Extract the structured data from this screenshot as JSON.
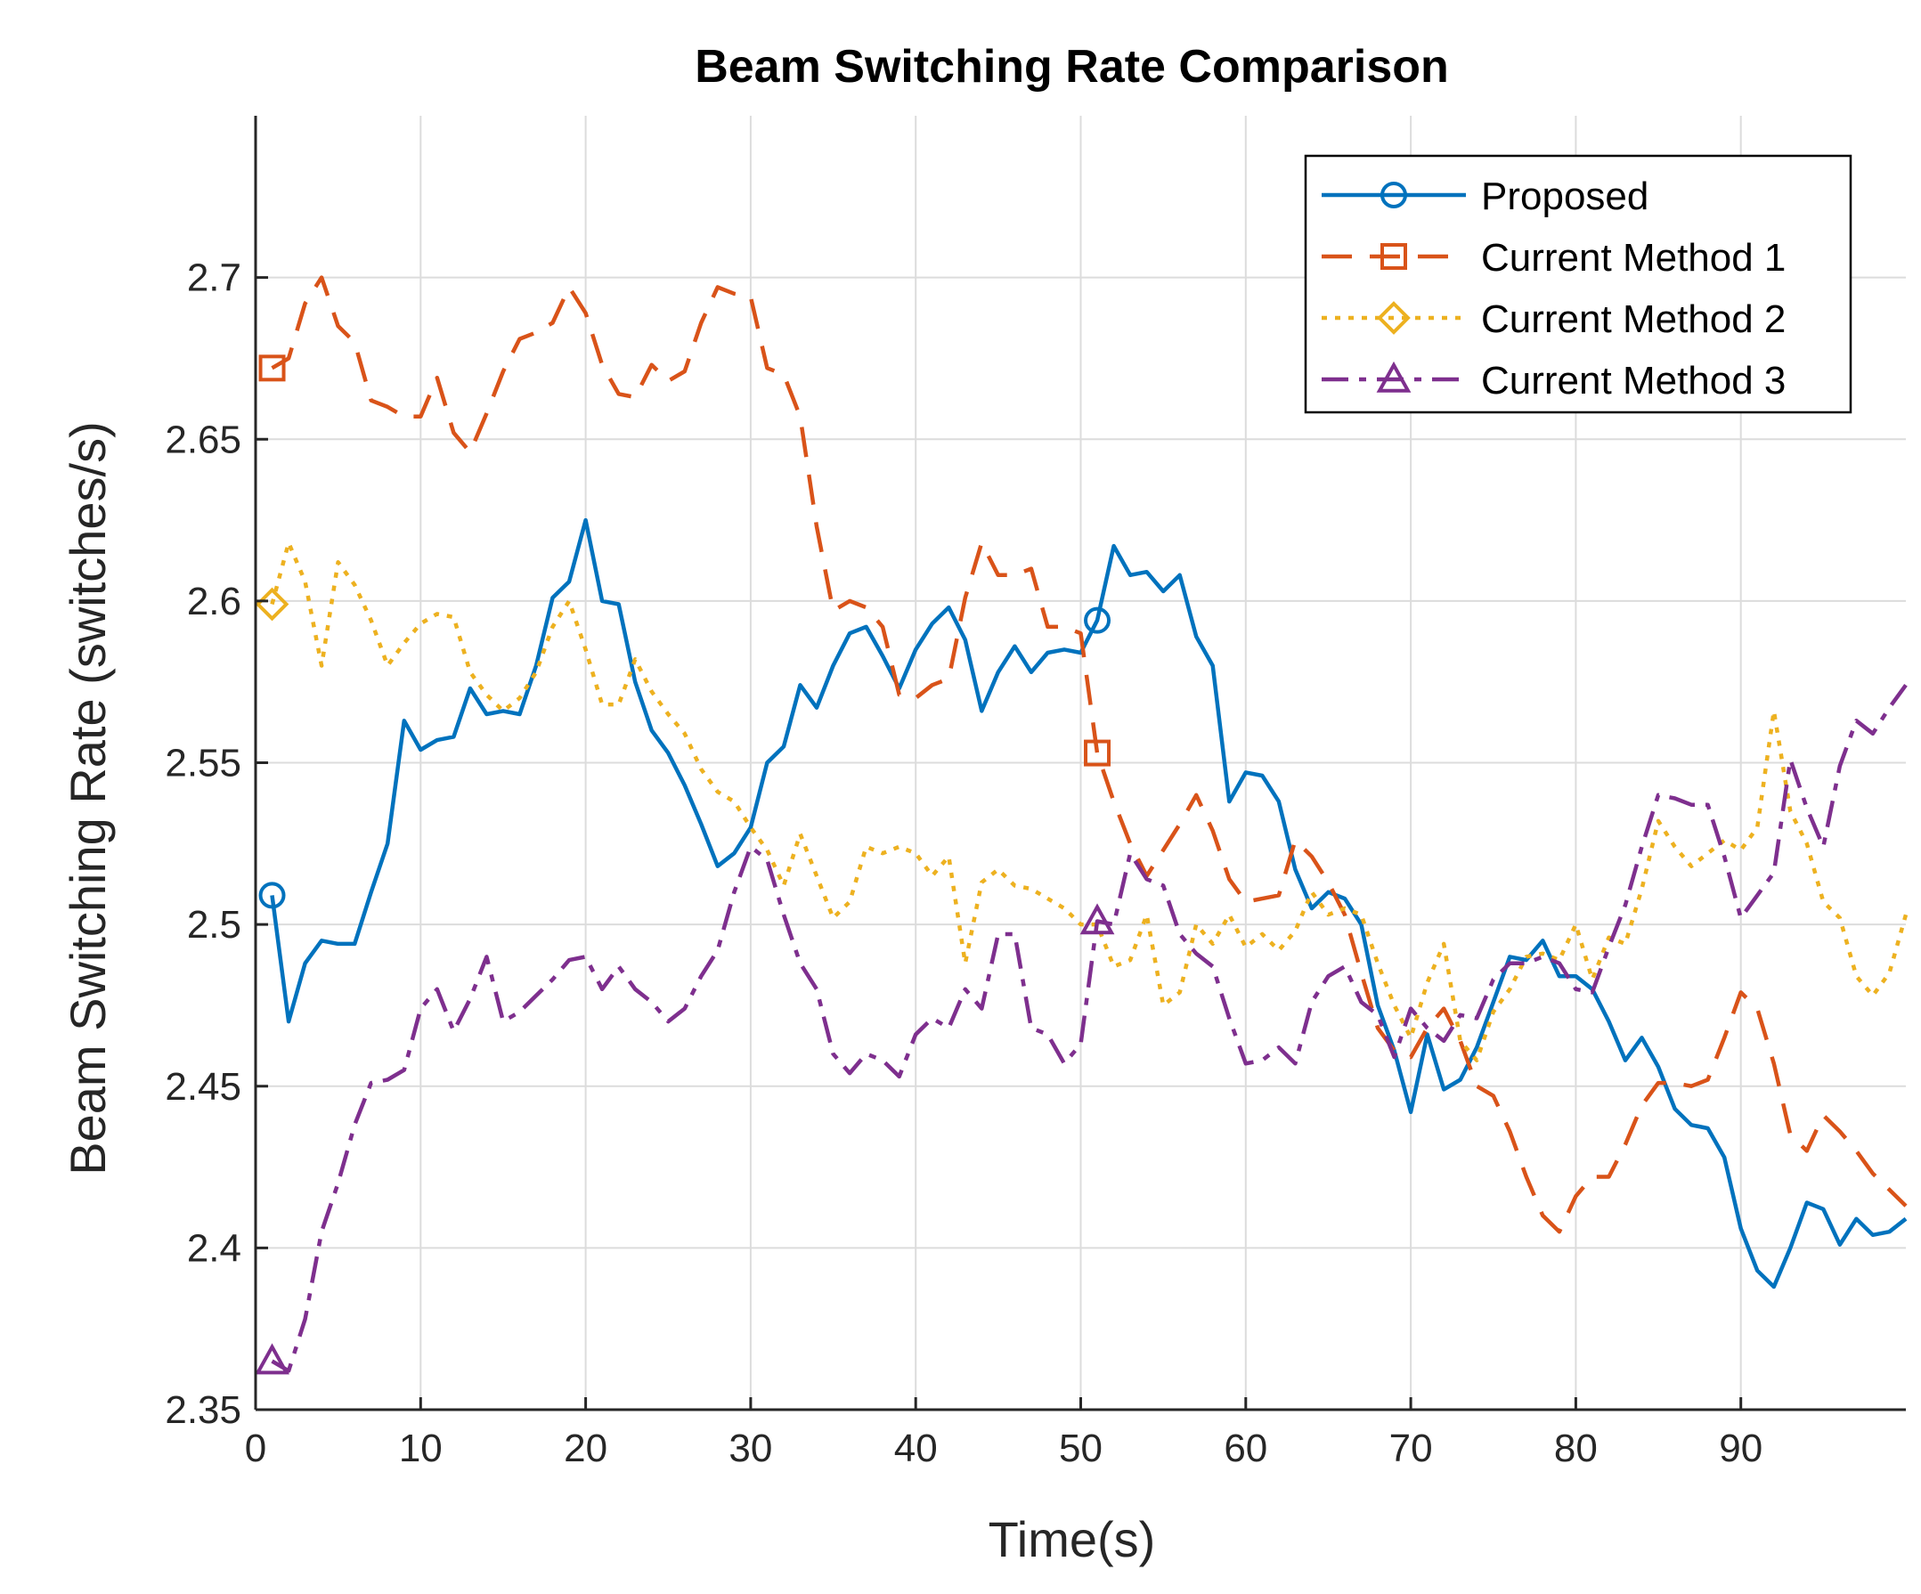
{
  "chart_data": {
    "type": "line",
    "title": "Beam Switching Rate Comparison",
    "xlabel": "Time(s)",
    "ylabel": "Beam Switching Rate (switches/s)",
    "xlim": [
      0,
      100
    ],
    "ylim": [
      2.35,
      2.75
    ],
    "xticks": [
      0,
      10,
      20,
      30,
      40,
      50,
      60,
      70,
      80,
      90
    ],
    "xtick_labels": [
      "0",
      "10",
      "20",
      "30",
      "40",
      "50",
      "60",
      "70",
      "80",
      "90"
    ],
    "yticks": [
      2.35,
      2.4,
      2.45,
      2.5,
      2.55,
      2.6,
      2.65,
      2.7
    ],
    "ytick_labels": [
      "2.35",
      "2.4",
      "2.45",
      "2.5",
      "2.55",
      "2.6",
      "2.65",
      "2.7"
    ],
    "grid": true,
    "legend_position": "top-right",
    "x": [
      1,
      2,
      3,
      4,
      5,
      6,
      7,
      8,
      9,
      10,
      11,
      12,
      13,
      14,
      15,
      16,
      17,
      18,
      19,
      20,
      21,
      22,
      23,
      24,
      25,
      26,
      27,
      28,
      29,
      30,
      31,
      32,
      33,
      34,
      35,
      36,
      37,
      38,
      39,
      40,
      41,
      42,
      43,
      44,
      45,
      46,
      47,
      48,
      49,
      50,
      51,
      52,
      53,
      54,
      55,
      56,
      57,
      58,
      59,
      60,
      61,
      62,
      63,
      64,
      65,
      66,
      67,
      68,
      69,
      70,
      71,
      72,
      73,
      74,
      75,
      76,
      77,
      78,
      79,
      80,
      81,
      82,
      83,
      84,
      85,
      86,
      87,
      88,
      89,
      90,
      91,
      92,
      93,
      94,
      95,
      96,
      97,
      98,
      99,
      100
    ],
    "series": [
      {
        "name": "Proposed",
        "color": "#0072BD",
        "dash": "solid",
        "marker": "circle",
        "marker_x": [
          1,
          51
        ],
        "values": [
          2.509,
          2.47,
          2.488,
          2.495,
          2.494,
          2.494,
          2.51,
          2.525,
          2.563,
          2.554,
          2.557,
          2.558,
          2.573,
          2.565,
          2.566,
          2.565,
          2.58,
          2.601,
          2.606,
          2.625,
          2.6,
          2.599,
          2.575,
          2.56,
          2.553,
          2.543,
          2.531,
          2.518,
          2.522,
          2.53,
          2.55,
          2.555,
          2.574,
          2.567,
          2.58,
          2.59,
          2.592,
          2.583,
          2.573,
          2.585,
          2.593,
          2.598,
          2.588,
          2.566,
          2.578,
          2.586,
          2.578,
          2.584,
          2.585,
          2.584,
          2.594,
          2.617,
          2.608,
          2.609,
          2.603,
          2.608,
          2.589,
          2.58,
          2.538,
          2.547,
          2.546,
          2.538,
          2.517,
          2.505,
          2.51,
          2.508,
          2.5,
          2.475,
          2.461,
          2.442,
          2.466,
          2.449,
          2.452,
          2.462,
          2.476,
          2.49,
          2.489,
          2.495,
          2.484,
          2.484,
          2.48,
          2.47,
          2.458,
          2.465,
          2.456,
          2.443,
          2.438,
          2.437,
          2.428,
          2.406,
          2.393,
          2.388,
          2.4,
          2.414,
          2.412,
          2.401,
          2.409,
          2.404,
          2.405,
          2.409
        ]
      },
      {
        "name": "Current Method 1",
        "color": "#D95319",
        "dash": "dashed",
        "marker": "square",
        "marker_x": [
          1,
          51
        ],
        "values": [
          2.672,
          2.675,
          2.692,
          2.7,
          2.685,
          2.68,
          2.662,
          2.66,
          2.657,
          2.657,
          2.669,
          2.652,
          2.646,
          2.658,
          2.671,
          2.681,
          2.683,
          2.686,
          2.697,
          2.689,
          2.673,
          2.664,
          2.663,
          2.673,
          2.668,
          2.671,
          2.686,
          2.697,
          2.695,
          2.694,
          2.672,
          2.67,
          2.657,
          2.623,
          2.597,
          2.6,
          2.598,
          2.592,
          2.571,
          2.57,
          2.574,
          2.576,
          2.601,
          2.618,
          2.608,
          2.608,
          2.61,
          2.592,
          2.592,
          2.59,
          2.553,
          2.538,
          2.525,
          2.515,
          2.523,
          2.531,
          2.54,
          2.529,
          2.514,
          2.507,
          2.508,
          2.509,
          2.526,
          2.521,
          2.513,
          2.503,
          2.485,
          2.468,
          2.461,
          2.459,
          2.468,
          2.474,
          2.464,
          2.45,
          2.447,
          2.436,
          2.422,
          2.41,
          2.405,
          2.416,
          2.422,
          2.422,
          2.432,
          2.444,
          2.451,
          2.451,
          2.45,
          2.452,
          2.465,
          2.479,
          2.474,
          2.457,
          2.435,
          2.43,
          2.441,
          2.436,
          2.43,
          2.423,
          2.418,
          2.413
        ]
      },
      {
        "name": "Current Method 2",
        "color": "#EDB120",
        "dash": "dotted",
        "marker": "diamond",
        "marker_x": [
          1
        ],
        "values": [
          2.599,
          2.618,
          2.606,
          2.58,
          2.612,
          2.605,
          2.594,
          2.58,
          2.587,
          2.593,
          2.596,
          2.595,
          2.578,
          2.571,
          2.566,
          2.57,
          2.578,
          2.592,
          2.6,
          2.585,
          2.568,
          2.568,
          2.582,
          2.572,
          2.565,
          2.559,
          2.548,
          2.541,
          2.538,
          2.53,
          2.523,
          2.512,
          2.528,
          2.515,
          2.502,
          2.507,
          2.524,
          2.522,
          2.524,
          2.522,
          2.515,
          2.521,
          2.488,
          2.513,
          2.517,
          2.512,
          2.511,
          2.508,
          2.505,
          2.5,
          2.5,
          2.487,
          2.489,
          2.503,
          2.475,
          2.479,
          2.5,
          2.494,
          2.503,
          2.493,
          2.497,
          2.492,
          2.498,
          2.51,
          2.503,
          2.505,
          2.503,
          2.488,
          2.475,
          2.465,
          2.482,
          2.494,
          2.464,
          2.458,
          2.473,
          2.48,
          2.49,
          2.491,
          2.489,
          2.5,
          2.483,
          2.496,
          2.494,
          2.511,
          2.532,
          2.524,
          2.518,
          2.522,
          2.526,
          2.523,
          2.53,
          2.566,
          2.535,
          2.525,
          2.507,
          2.502,
          2.484,
          2.478,
          2.485,
          2.503
        ]
      },
      {
        "name": "Current Method 3",
        "color": "#7E2F8E",
        "dash": "dashdot",
        "marker": "triangle",
        "marker_x": [
          1,
          51
        ],
        "values": [
          2.365,
          2.362,
          2.378,
          2.405,
          2.42,
          2.438,
          2.451,
          2.452,
          2.455,
          2.474,
          2.48,
          2.467,
          2.477,
          2.49,
          2.47,
          2.473,
          2.478,
          2.483,
          2.489,
          2.49,
          2.48,
          2.487,
          2.48,
          2.476,
          2.47,
          2.474,
          2.484,
          2.492,
          2.51,
          2.524,
          2.52,
          2.503,
          2.488,
          2.48,
          2.46,
          2.454,
          2.46,
          2.458,
          2.453,
          2.466,
          2.471,
          2.468,
          2.48,
          2.474,
          2.497,
          2.497,
          2.468,
          2.466,
          2.457,
          2.463,
          2.501,
          2.5,
          2.522,
          2.514,
          2.512,
          2.497,
          2.491,
          2.487,
          2.471,
          2.457,
          2.458,
          2.462,
          2.457,
          2.476,
          2.484,
          2.487,
          2.476,
          2.472,
          2.459,
          2.474,
          2.468,
          2.464,
          2.472,
          2.471,
          2.483,
          2.488,
          2.488,
          2.49,
          2.488,
          2.48,
          2.479,
          2.493,
          2.506,
          2.524,
          2.54,
          2.539,
          2.537,
          2.537,
          2.521,
          2.502,
          2.509,
          2.516,
          2.551,
          2.536,
          2.524,
          2.549,
          2.563,
          2.559,
          2.567,
          2.574
        ]
      }
    ]
  }
}
